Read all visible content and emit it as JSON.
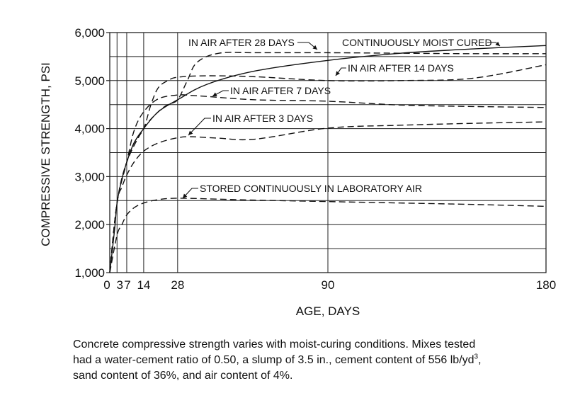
{
  "chart_data": {
    "type": "line",
    "xlabel": "AGE, DAYS",
    "ylabel": "COMPRESSIVE STRENGTH, PSI",
    "xlim": [
      0,
      180
    ],
    "ylim": [
      1000,
      6000
    ],
    "x_ticks": [
      0,
      3,
      7,
      14,
      28,
      90,
      180
    ],
    "x_tick_labels": [
      "0",
      "3",
      "7",
      "14",
      "28",
      "90",
      "180"
    ],
    "y_ticks": [
      1000,
      2000,
      3000,
      4000,
      5000,
      6000
    ],
    "y_tick_labels": [
      "1,000",
      "2,000",
      "3,000",
      "4,000",
      "5,000",
      "6,000"
    ],
    "y_minor_step": 500,
    "grid": true,
    "series": [
      {
        "name": "CONTINUOUSLY MOIST CURED",
        "style": "solid",
        "x": [
          0,
          2,
          3,
          5,
          7,
          10,
          14,
          20,
          28,
          40,
          60,
          90,
          120,
          150,
          180
        ],
        "y": [
          1000,
          1900,
          2450,
          2950,
          3300,
          3700,
          4000,
          4350,
          4600,
          4920,
          5200,
          5420,
          5570,
          5660,
          5730
        ]
      },
      {
        "name": "IN AIR AFTER 28 DAYS",
        "style": "dashed",
        "x": [
          0,
          3,
          7,
          14,
          20,
          24,
          28,
          32,
          36,
          45,
          60,
          90,
          120,
          150,
          180
        ],
        "y": [
          1000,
          2450,
          3300,
          4000,
          4350,
          4500,
          4600,
          5000,
          5380,
          5570,
          5580,
          5580,
          5570,
          5560,
          5560
        ]
      },
      {
        "name": "IN AIR AFTER 14 DAYS",
        "style": "dashed",
        "x": [
          0,
          3,
          7,
          10,
          14,
          17,
          20,
          24,
          28,
          40,
          60,
          90,
          120,
          150,
          180
        ],
        "y": [
          1000,
          2450,
          3300,
          3700,
          4000,
          4500,
          4850,
          5000,
          5070,
          5100,
          5080,
          5000,
          5000,
          5050,
          5330
        ]
      },
      {
        "name": "IN AIR AFTER 7 DAYS",
        "style": "dashed",
        "x": [
          0,
          3,
          7,
          10,
          14,
          20,
          28,
          34,
          40,
          60,
          90,
          120,
          150,
          180
        ],
        "y": [
          1000,
          2450,
          3300,
          3950,
          4350,
          4620,
          4700,
          4690,
          4670,
          4600,
          4570,
          4490,
          4460,
          4440
        ]
      },
      {
        "name": "IN AIR AFTER 3 DAYS",
        "style": "dashed",
        "x": [
          0,
          3,
          5,
          7,
          10,
          14,
          20,
          28,
          34,
          45,
          60,
          90,
          120,
          150,
          180
        ],
        "y": [
          1000,
          2450,
          2780,
          3030,
          3300,
          3530,
          3700,
          3810,
          3830,
          3800,
          3780,
          4010,
          4070,
          4110,
          4140
        ]
      },
      {
        "name": "STORED CONTINUOUSLY IN LABORATORY AIR",
        "style": "dashed",
        "x": [
          0,
          3,
          5,
          7,
          10,
          14,
          20,
          28,
          45,
          60,
          90,
          120,
          150,
          180
        ],
        "y": [
          1000,
          1780,
          2000,
          2200,
          2350,
          2450,
          2520,
          2550,
          2530,
          2510,
          2480,
          2450,
          2420,
          2380
        ]
      }
    ],
    "annotations": [
      {
        "text": "CONTINUOUSLY MOIST CURED",
        "series": 0
      },
      {
        "text": "IN AIR AFTER 28 DAYS",
        "series": 1
      },
      {
        "text": "IN AIR AFTER 14 DAYS",
        "series": 2
      },
      {
        "text": "IN AIR AFTER 7 DAYS",
        "series": 3
      },
      {
        "text": "IN AIR AFTER 3 DAYS",
        "series": 4
      },
      {
        "text": "STORED CONTINUOUSLY IN LABORATORY AIR",
        "series": 5
      }
    ]
  },
  "caption": {
    "line1": "Concrete compressive strength varies with moist-curing conditions. Mixes tested",
    "line2_before_sup": "had a water-cement ratio of 0.50, a slump of 3.5 in., cement content of 556 lb/yd",
    "line2_sup": "3",
    "line2_after_sup": ",",
    "line3": "sand content of 36%, and air content of 4%."
  }
}
